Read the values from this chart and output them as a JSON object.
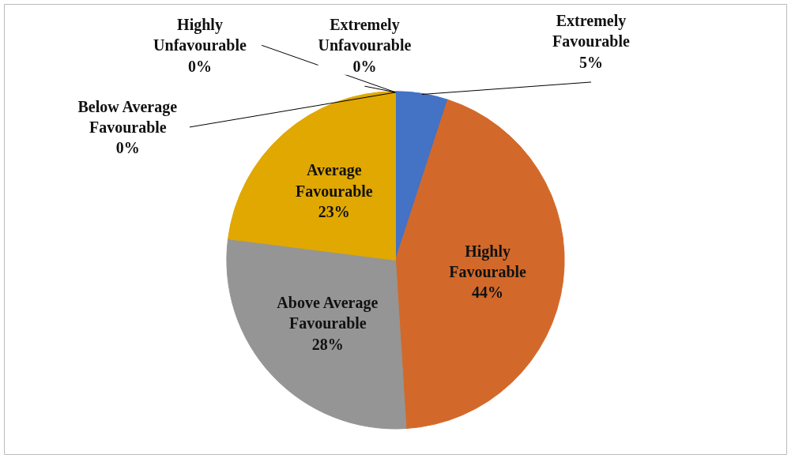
{
  "chart_data": {
    "type": "pie",
    "categories": [
      "Extremely Favourable",
      "Highly Favourable",
      "Above Average Favourable",
      "Average Favourable",
      "Below Average Favourable",
      "Highly Unfavourable",
      "Extremely Unfavourable"
    ],
    "values": [
      5,
      44,
      28,
      23,
      0,
      0,
      0
    ],
    "value_labels": [
      "5%",
      "44%",
      "28%",
      "23%",
      "0%",
      "0%",
      "0%"
    ],
    "colors": [
      "#4472c4",
      "#d2692a",
      "#959595",
      "#e0a800",
      "#5b9bd5",
      "#264478",
      "#9e480e"
    ]
  }
}
